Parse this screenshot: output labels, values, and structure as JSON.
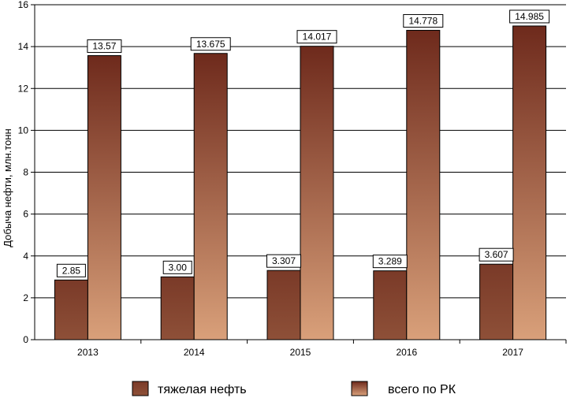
{
  "chart_data": {
    "type": "bar",
    "categories": [
      "2013",
      "2014",
      "2015",
      "2016",
      "2017"
    ],
    "series": [
      {
        "name": "тяжелая нефть",
        "values": [
          2.85,
          3.0,
          3.307,
          3.289,
          3.607
        ],
        "labels": [
          "2.85",
          "3.00",
          "3.307",
          "3.289",
          "3.607"
        ],
        "color": "#7f3f2c"
      },
      {
        "name": "всего по РК",
        "values": [
          13.57,
          13.675,
          14.017,
          14.778,
          14.985
        ],
        "labels": [
          "13.57",
          "13.675",
          "14.017",
          "14.778",
          "14.985"
        ],
        "color_top": "#6e2a1c",
        "color_bottom": "#d8a078"
      }
    ],
    "ylabel": "Добыча нефти, млн.тонн",
    "xlabel": "",
    "ylim": [
      0,
      16
    ],
    "yticks": [
      "0",
      "2",
      "4",
      "6",
      "8",
      "10",
      "12",
      "14",
      "16"
    ],
    "grid": true,
    "legend": "bottom"
  }
}
